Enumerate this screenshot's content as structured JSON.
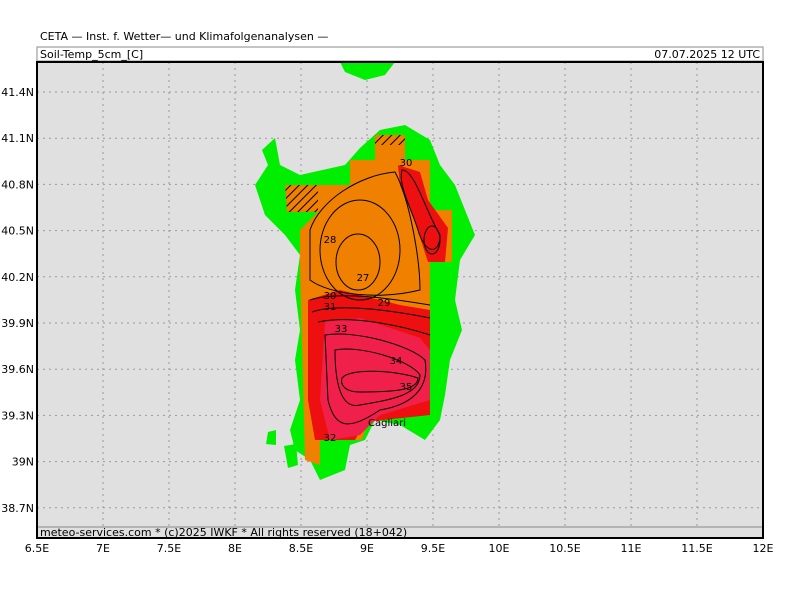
{
  "header": {
    "title": "CETA — Inst. f. Wetter— und Klimafolgenanalysen —",
    "parameter": "Soil-Temp_5cm_[C]",
    "valid_time": "07.07.2025 12 UTC"
  },
  "footer": "meteo-services.com * (c)2025 IWKF * All rights reserved (18+042)",
  "lat_labels": [
    "41.4N",
    "41.1N",
    "40.8N",
    "40.5N",
    "40.2N",
    "39.9N",
    "39.6N",
    "39.3N",
    "39N",
    "38.7N"
  ],
  "lon_labels": [
    "6.5E",
    "7E",
    "7.5E",
    "8E",
    "8.5E",
    "9E",
    "9.5E",
    "10E",
    "10.5E",
    "11E",
    "11.5E",
    "12E"
  ],
  "contour_labels": [
    "30",
    "28",
    "27",
    "30",
    "29",
    "31",
    "33",
    "34",
    "35",
    "32"
  ],
  "place_label": "Cagliari"
}
